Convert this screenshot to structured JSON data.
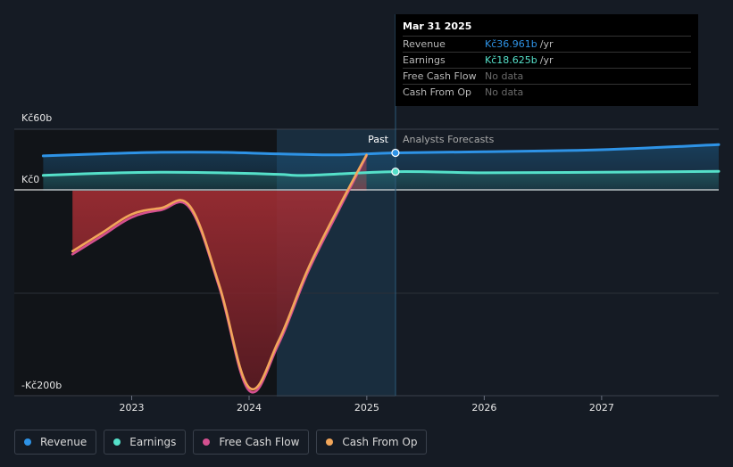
{
  "tooltip": {
    "date": "Mar 31 2025",
    "rows": [
      {
        "label": "Revenue",
        "value": "Kč36.961b",
        "unit": "/yr",
        "color": "#2e93e6"
      },
      {
        "label": "Earnings",
        "value": "Kč18.625b",
        "unit": "/yr",
        "color": "#55e0c9"
      },
      {
        "label": "Free Cash Flow",
        "value": "No data",
        "unit": "",
        "color": "#6b6b6b"
      },
      {
        "label": "Cash From Op",
        "value": "No data",
        "unit": "",
        "color": "#6b6b6b"
      }
    ]
  },
  "labels": {
    "past": "Past",
    "forecast": "Analysts Forecasts"
  },
  "legend": [
    {
      "label": "Revenue",
      "color": "#2e93e6"
    },
    {
      "label": "Earnings",
      "color": "#55e0c9"
    },
    {
      "label": "Free Cash Flow",
      "color": "#d4508f"
    },
    {
      "label": "Cash From Op",
      "color": "#f2a65a"
    }
  ],
  "chart_data": {
    "type": "line",
    "y_unit": "Kč b",
    "ylim": [
      -200,
      60
    ],
    "y_tick_labels": [
      {
        "value": 60,
        "label": "Kč60b"
      },
      {
        "value": 0,
        "label": "Kč0"
      },
      {
        "value": -200,
        "label": "-Kč200b"
      }
    ],
    "x_tick_labels": [
      "2023",
      "2024",
      "2025",
      "2026",
      "2027"
    ],
    "past_end": "2025-03-31",
    "series": [
      {
        "name": "Revenue",
        "color": "#2e93e6",
        "points": [
          [
            "2022-04-01",
            34
          ],
          [
            "2022-10-01",
            36
          ],
          [
            "2023-04-01",
            37.5
          ],
          [
            "2023-10-01",
            37.5
          ],
          [
            "2024-04-01",
            36
          ],
          [
            "2024-10-01",
            35
          ],
          [
            "2025-03-31",
            36.961
          ],
          [
            "2025-12-31",
            38
          ],
          [
            "2026-12-31",
            40
          ],
          [
            "2027-12-31",
            45
          ]
        ]
      },
      {
        "name": "Earnings",
        "color": "#55e0c9",
        "points": [
          [
            "2022-04-01",
            15
          ],
          [
            "2022-10-01",
            17
          ],
          [
            "2023-04-01",
            18
          ],
          [
            "2023-10-01",
            17.5
          ],
          [
            "2024-04-01",
            16
          ],
          [
            "2024-07-01",
            15
          ],
          [
            "2025-03-31",
            18.625
          ],
          [
            "2025-12-31",
            17.5
          ],
          [
            "2026-12-31",
            18
          ],
          [
            "2027-12-31",
            19
          ]
        ]
      },
      {
        "name": "Free Cash Flow",
        "color": "#d4508f",
        "points": [
          [
            "2022-07-01",
            -62
          ],
          [
            "2022-10-01",
            -44
          ],
          [
            "2023-01-01",
            -26
          ],
          [
            "2023-04-01",
            -19
          ],
          [
            "2023-07-01",
            -17
          ],
          [
            "2023-10-01",
            -95
          ],
          [
            "2024-01-01",
            -195
          ],
          [
            "2024-04-01",
            -150
          ],
          [
            "2024-07-01",
            -80
          ],
          [
            "2024-10-01",
            -22
          ],
          [
            "2024-12-31",
            34
          ]
        ]
      },
      {
        "name": "Cash From Op",
        "color": "#f2a65a",
        "points": [
          [
            "2022-07-01",
            -59
          ],
          [
            "2022-10-01",
            -41
          ],
          [
            "2023-01-01",
            -23
          ],
          [
            "2023-04-01",
            -17
          ],
          [
            "2023-07-01",
            -15
          ],
          [
            "2023-10-01",
            -93
          ],
          [
            "2024-01-01",
            -192
          ],
          [
            "2024-04-01",
            -147
          ],
          [
            "2024-07-01",
            -77
          ],
          [
            "2024-10-01",
            -19
          ],
          [
            "2024-12-31",
            35
          ]
        ]
      }
    ]
  }
}
